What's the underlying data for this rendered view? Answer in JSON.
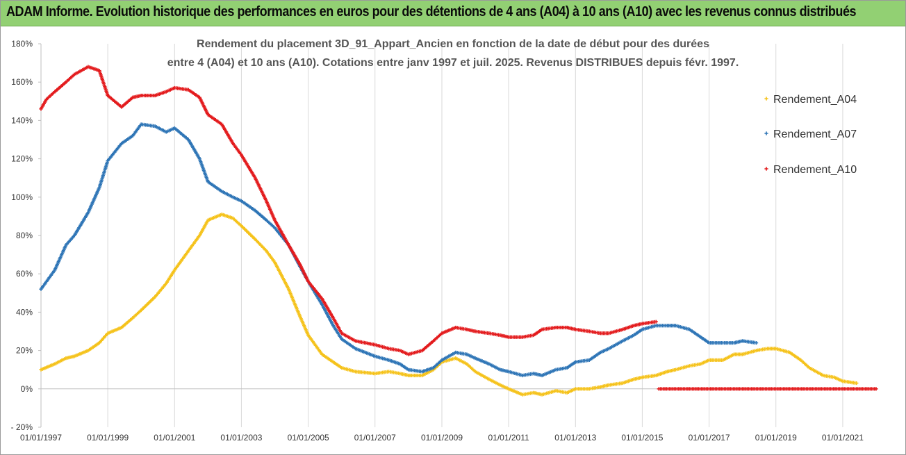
{
  "banner": {
    "title": "ADAM Informe. Evolution historique des performances en euros pour des détentions de 4 ans (A04) à 10 ans (A10) avec les revenus connus distribués"
  },
  "chart_data": {
    "type": "scatter",
    "title_line1": "Rendement du placement 3D_91_Appart_Ancien en fonction de la date de début pour des durées",
    "title_line2": "entre 4 (A04) et 10 ans (A10).  Cotations entre janv 1997 et juil. 2025. Revenus DISTRIBUES depuis févr. 1997.",
    "xlabel": "",
    "ylabel": "",
    "x_range": [
      "1997-01-01",
      "2022-01-01"
    ],
    "ylim": [
      -20,
      180
    ],
    "y_ticks": [
      -20,
      0,
      20,
      40,
      60,
      80,
      100,
      120,
      140,
      160,
      180
    ],
    "y_tick_labels": [
      "- 20%",
      "0%",
      "20%",
      "40%",
      "60%",
      "80%",
      "100%",
      "120%",
      "140%",
      "160%",
      "180%"
    ],
    "x_tick_labels": [
      "01/01/1997",
      "01/01/1999",
      "01/01/2001",
      "01/01/2003",
      "01/01/2005",
      "01/01/2007",
      "01/01/2009",
      "01/01/2011",
      "01/01/2013",
      "01/01/2015",
      "01/01/2017",
      "01/01/2019",
      "01/01/2021"
    ],
    "grid": "vertical",
    "legend_position": "right",
    "series": [
      {
        "name": "Rendement_A04",
        "color": "#f5c21a",
        "points": [
          [
            "1997-01-01",
            10
          ],
          [
            "1997-06-01",
            13
          ],
          [
            "1997-10-01",
            16
          ],
          [
            "1998-01-01",
            17
          ],
          [
            "1998-06-01",
            20
          ],
          [
            "1998-10-01",
            24
          ],
          [
            "1999-01-01",
            29
          ],
          [
            "1999-06-01",
            32
          ],
          [
            "1999-10-01",
            37
          ],
          [
            "2000-01-01",
            41
          ],
          [
            "2000-06-01",
            48
          ],
          [
            "2000-10-01",
            55
          ],
          [
            "2001-01-01",
            62
          ],
          [
            "2001-06-01",
            72
          ],
          [
            "2001-10-01",
            80
          ],
          [
            "2002-01-01",
            88
          ],
          [
            "2002-06-01",
            91
          ],
          [
            "2002-10-01",
            89
          ],
          [
            "2003-01-01",
            85
          ],
          [
            "2003-06-01",
            78
          ],
          [
            "2003-10-01",
            72
          ],
          [
            "2004-01-01",
            66
          ],
          [
            "2004-06-01",
            52
          ],
          [
            "2004-10-01",
            38
          ],
          [
            "2005-01-01",
            28
          ],
          [
            "2005-06-01",
            18
          ],
          [
            "2005-10-01",
            14
          ],
          [
            "2006-01-01",
            11
          ],
          [
            "2006-06-01",
            9
          ],
          [
            "2007-01-01",
            8
          ],
          [
            "2007-06-01",
            9
          ],
          [
            "2007-10-01",
            8
          ],
          [
            "2008-01-01",
            7
          ],
          [
            "2008-06-01",
            7
          ],
          [
            "2008-10-01",
            10
          ],
          [
            "2009-01-01",
            14
          ],
          [
            "2009-06-01",
            16
          ],
          [
            "2009-10-01",
            13
          ],
          [
            "2010-01-01",
            9
          ],
          [
            "2010-06-01",
            5
          ],
          [
            "2010-10-01",
            2
          ],
          [
            "2011-01-01",
            0
          ],
          [
            "2011-06-01",
            -3
          ],
          [
            "2011-10-01",
            -2
          ],
          [
            "2012-01-01",
            -3
          ],
          [
            "2012-06-01",
            -1
          ],
          [
            "2012-10-01",
            -2
          ],
          [
            "2013-01-01",
            0
          ],
          [
            "2013-06-01",
            0
          ],
          [
            "2013-10-01",
            1
          ],
          [
            "2014-01-01",
            2
          ],
          [
            "2014-06-01",
            3
          ],
          [
            "2014-10-01",
            5
          ],
          [
            "2015-01-01",
            6
          ],
          [
            "2015-06-01",
            7
          ],
          [
            "2015-10-01",
            9
          ],
          [
            "2016-01-01",
            10
          ],
          [
            "2016-06-01",
            12
          ],
          [
            "2016-10-01",
            13
          ],
          [
            "2017-01-01",
            15
          ],
          [
            "2017-06-01",
            15
          ],
          [
            "2017-10-01",
            18
          ],
          [
            "2018-01-01",
            18
          ],
          [
            "2018-06-01",
            20
          ],
          [
            "2018-10-01",
            21
          ],
          [
            "2019-01-01",
            21
          ],
          [
            "2019-06-01",
            19
          ],
          [
            "2019-10-01",
            15
          ],
          [
            "2020-01-01",
            11
          ],
          [
            "2020-06-01",
            7
          ],
          [
            "2020-10-01",
            6
          ],
          [
            "2021-01-01",
            4
          ],
          [
            "2021-06-01",
            3
          ]
        ]
      },
      {
        "name": "Rendement_A07",
        "color": "#2e75b6",
        "points": [
          [
            "1997-01-01",
            52
          ],
          [
            "1997-06-01",
            62
          ],
          [
            "1997-10-01",
            75
          ],
          [
            "1998-01-01",
            80
          ],
          [
            "1998-06-01",
            92
          ],
          [
            "1998-10-01",
            105
          ],
          [
            "1999-01-01",
            119
          ],
          [
            "1999-06-01",
            128
          ],
          [
            "1999-10-01",
            132
          ],
          [
            "2000-01-01",
            138
          ],
          [
            "2000-06-01",
            137
          ],
          [
            "2000-10-01",
            134
          ],
          [
            "2001-01-01",
            136
          ],
          [
            "2001-06-01",
            130
          ],
          [
            "2001-10-01",
            120
          ],
          [
            "2002-01-01",
            108
          ],
          [
            "2002-06-01",
            103
          ],
          [
            "2002-10-01",
            100
          ],
          [
            "2003-01-01",
            98
          ],
          [
            "2003-06-01",
            93
          ],
          [
            "2003-10-01",
            88
          ],
          [
            "2004-01-01",
            84
          ],
          [
            "2004-06-01",
            75
          ],
          [
            "2004-10-01",
            64
          ],
          [
            "2005-01-01",
            56
          ],
          [
            "2005-06-01",
            44
          ],
          [
            "2005-10-01",
            33
          ],
          [
            "2006-01-01",
            26
          ],
          [
            "2006-06-01",
            21
          ],
          [
            "2007-01-01",
            17
          ],
          [
            "2007-06-01",
            15
          ],
          [
            "2007-10-01",
            13
          ],
          [
            "2008-01-01",
            10
          ],
          [
            "2008-06-01",
            9
          ],
          [
            "2008-10-01",
            11
          ],
          [
            "2009-01-01",
            15
          ],
          [
            "2009-06-01",
            19
          ],
          [
            "2009-10-01",
            18
          ],
          [
            "2010-01-01",
            16
          ],
          [
            "2010-06-01",
            13
          ],
          [
            "2010-10-01",
            10
          ],
          [
            "2011-01-01",
            9
          ],
          [
            "2011-06-01",
            7
          ],
          [
            "2011-10-01",
            8
          ],
          [
            "2012-01-01",
            7
          ],
          [
            "2012-06-01",
            10
          ],
          [
            "2012-10-01",
            11
          ],
          [
            "2013-01-01",
            14
          ],
          [
            "2013-06-01",
            15
          ],
          [
            "2013-10-01",
            19
          ],
          [
            "2014-01-01",
            21
          ],
          [
            "2014-06-01",
            25
          ],
          [
            "2014-10-01",
            28
          ],
          [
            "2015-01-01",
            31
          ],
          [
            "2015-06-01",
            33
          ],
          [
            "2015-10-01",
            33
          ],
          [
            "2016-01-01",
            33
          ],
          [
            "2016-06-01",
            31
          ],
          [
            "2016-10-01",
            27
          ],
          [
            "2017-01-01",
            24
          ],
          [
            "2017-06-01",
            24
          ],
          [
            "2017-10-01",
            24
          ],
          [
            "2018-01-01",
            25
          ],
          [
            "2018-06-01",
            24
          ]
        ]
      },
      {
        "name": "Rendement_A10",
        "color": "#e31a1c",
        "points": [
          [
            "1997-01-01",
            146
          ],
          [
            "1997-03-01",
            151
          ],
          [
            "1997-06-01",
            155
          ],
          [
            "1997-10-01",
            160
          ],
          [
            "1998-01-01",
            164
          ],
          [
            "1998-06-01",
            168
          ],
          [
            "1998-10-01",
            166
          ],
          [
            "1999-01-01",
            153
          ],
          [
            "1999-06-01",
            147
          ],
          [
            "1999-10-01",
            152
          ],
          [
            "2000-01-01",
            153
          ],
          [
            "2000-06-01",
            153
          ],
          [
            "2000-10-01",
            155
          ],
          [
            "2001-01-01",
            157
          ],
          [
            "2001-06-01",
            156
          ],
          [
            "2001-10-01",
            152
          ],
          [
            "2002-01-01",
            143
          ],
          [
            "2002-06-01",
            138
          ],
          [
            "2002-10-01",
            128
          ],
          [
            "2003-01-01",
            122
          ],
          [
            "2003-06-01",
            110
          ],
          [
            "2003-10-01",
            98
          ],
          [
            "2004-01-01",
            88
          ],
          [
            "2004-06-01",
            75
          ],
          [
            "2004-10-01",
            65
          ],
          [
            "2005-01-01",
            56
          ],
          [
            "2005-06-01",
            47
          ],
          [
            "2005-10-01",
            37
          ],
          [
            "2006-01-01",
            29
          ],
          [
            "2006-06-01",
            25
          ],
          [
            "2007-01-01",
            23
          ],
          [
            "2007-06-01",
            21
          ],
          [
            "2007-10-01",
            20
          ],
          [
            "2008-01-01",
            18
          ],
          [
            "2008-06-01",
            20
          ],
          [
            "2008-10-01",
            25
          ],
          [
            "2009-01-01",
            29
          ],
          [
            "2009-06-01",
            32
          ],
          [
            "2009-10-01",
            31
          ],
          [
            "2010-01-01",
            30
          ],
          [
            "2010-06-01",
            29
          ],
          [
            "2010-10-01",
            28
          ],
          [
            "2011-01-01",
            27
          ],
          [
            "2011-06-01",
            27
          ],
          [
            "2011-10-01",
            28
          ],
          [
            "2012-01-01",
            31
          ],
          [
            "2012-06-01",
            32
          ],
          [
            "2012-10-01",
            32
          ],
          [
            "2013-01-01",
            31
          ],
          [
            "2013-06-01",
            30
          ],
          [
            "2013-10-01",
            29
          ],
          [
            "2014-01-01",
            29
          ],
          [
            "2014-06-01",
            31
          ],
          [
            "2014-10-01",
            33
          ],
          [
            "2015-01-01",
            34
          ],
          [
            "2015-06-01",
            35
          ],
          [
            "2015-07-01",
            0
          ],
          [
            "2016-01-01",
            0
          ],
          [
            "2017-01-01",
            0
          ],
          [
            "2018-01-01",
            0
          ],
          [
            "2019-01-01",
            0
          ],
          [
            "2020-01-01",
            0
          ],
          [
            "2021-01-01",
            0
          ],
          [
            "2022-01-01",
            0
          ]
        ]
      }
    ]
  }
}
